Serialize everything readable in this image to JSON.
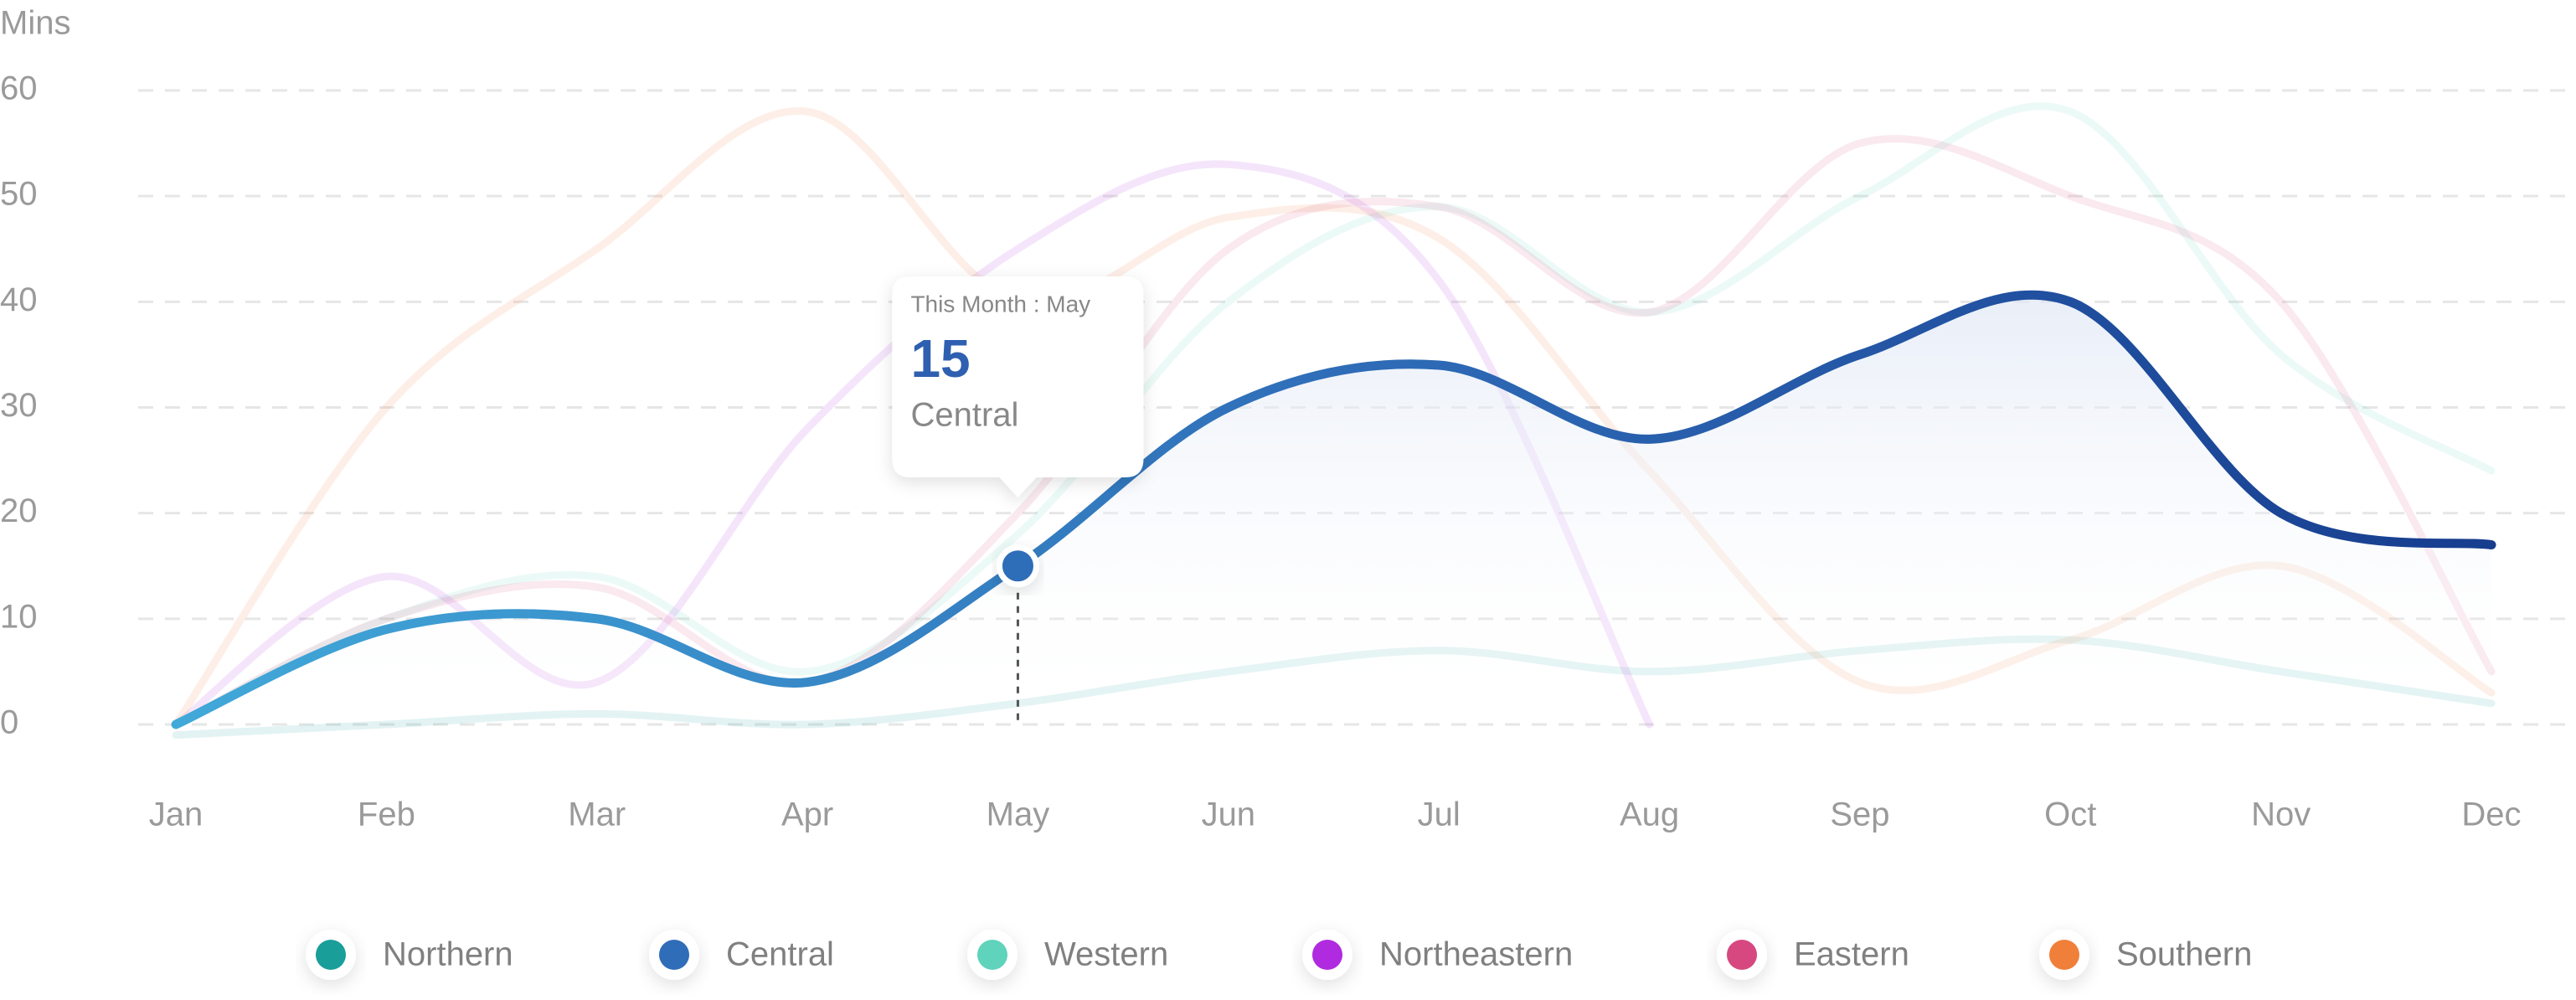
{
  "chart_data": {
    "type": "line",
    "y_axis_label": "Mins",
    "categories": [
      "Jan",
      "Feb",
      "Mar",
      "Apr",
      "May",
      "Jun",
      "Jul",
      "Aug",
      "Sep",
      "Oct",
      "Nov",
      "Dec"
    ],
    "ylim": [
      -3,
      63
    ],
    "yticks": [
      0,
      10,
      20,
      30,
      40,
      50,
      60
    ],
    "grid": true,
    "legend": "bottom",
    "highlight_series": 1,
    "highlight_index": 4,
    "tooltip_label": "This Month : May",
    "series": [
      {
        "name": "Northern",
        "color": "#1a9e9a",
        "values": [
          -1,
          0,
          1,
          0,
          2,
          5,
          7,
          5,
          7,
          8,
          5,
          2
        ]
      },
      {
        "name": "Central",
        "color": "#2f6db8",
        "values": [
          0,
          9,
          10,
          4,
          15,
          30,
          34,
          27,
          35,
          40,
          20,
          17
        ]
      },
      {
        "name": "Western",
        "color": "#5fd3bb",
        "values": [
          0,
          10,
          14,
          5,
          18,
          40,
          49,
          39,
          50,
          58,
          35,
          24
        ]
      },
      {
        "name": "Northeastern",
        "color": "#b02ae0",
        "values": [
          0,
          14,
          4,
          28,
          45,
          53,
          42,
          0,
          null,
          null,
          null,
          null
        ]
      },
      {
        "name": "Eastern",
        "color": "#d6487f",
        "values": [
          0,
          10,
          13,
          4,
          20,
          45,
          49,
          39,
          55,
          50,
          40,
          5
        ]
      },
      {
        "name": "Southern",
        "color": "#f07f3a",
        "values": [
          0,
          30,
          45,
          58,
          40,
          48,
          46,
          24,
          4,
          8,
          15,
          3
        ]
      }
    ]
  }
}
